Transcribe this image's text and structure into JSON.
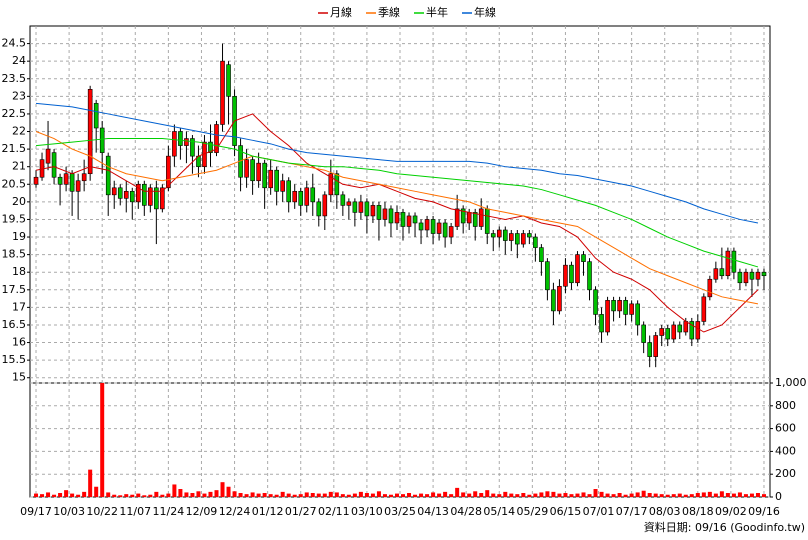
{
  "chart_data": {
    "type": "candlestick",
    "up_color": "#ff0000",
    "down_color": "#00c000",
    "outline_color": "#000000",
    "grid": true,
    "footer": "資料日期: 09/16 (Goodinfo.tw)",
    "xlim": [
      -1,
      122
    ],
    "xticks": [
      {
        "value": 0,
        "label": "09/17"
      },
      {
        "value": 5.5,
        "label": "10/03"
      },
      {
        "value": 11,
        "label": "10/22"
      },
      {
        "value": 16.5,
        "label": "11/07"
      },
      {
        "value": 22,
        "label": "11/24"
      },
      {
        "value": 27.5,
        "label": "12/09"
      },
      {
        "value": 33,
        "label": "12/24"
      },
      {
        "value": 38.5,
        "label": "01/12"
      },
      {
        "value": 44,
        "label": "01/27"
      },
      {
        "value": 49.5,
        "label": "02/11"
      },
      {
        "value": 55,
        "label": "03/10"
      },
      {
        "value": 60.5,
        "label": "03/25"
      },
      {
        "value": 66,
        "label": "04/13"
      },
      {
        "value": 71.5,
        "label": "04/28"
      },
      {
        "value": 77,
        "label": "05/14"
      },
      {
        "value": 82.5,
        "label": "05/29"
      },
      {
        "value": 88,
        "label": "06/15"
      },
      {
        "value": 93.5,
        "label": "07/01"
      },
      {
        "value": 99,
        "label": "07/17"
      },
      {
        "value": 104.5,
        "label": "08/03"
      },
      {
        "value": 110,
        "label": "08/18"
      },
      {
        "value": 115.5,
        "label": "09/02"
      },
      {
        "value": 121,
        "label": "09/16"
      }
    ],
    "ylim": [
      14.85,
      25
    ],
    "yticks": [
      15,
      15.5,
      16,
      16.5,
      17,
      17.5,
      18,
      18.5,
      19,
      19.5,
      20,
      20.5,
      21,
      21.5,
      22,
      22.5,
      23,
      23.5,
      24,
      24.5
    ],
    "ohlc": {
      "open": [
        20.5,
        20.7,
        21.1,
        21.4,
        20.7,
        20.5,
        20.8,
        20.3,
        20.6,
        20.8,
        22.8,
        22.1,
        21.3,
        20.2,
        20.4,
        20.1,
        20.3,
        20.0,
        20.5,
        19.9,
        20.4,
        19.8,
        20.4,
        21.3,
        22.0,
        21.6,
        21.8,
        21.3,
        21.0,
        21.7,
        21.4,
        22.2,
        23.9,
        23.0,
        21.6,
        20.7,
        21.2,
        20.6,
        21.1,
        20.4,
        20.9,
        20.3,
        20.6,
        20.0,
        20.3,
        19.9,
        20.4,
        20.0,
        19.6,
        20.2,
        20.8,
        20.2,
        19.9,
        20.0,
        19.7,
        20.0,
        19.6,
        19.9,
        19.5,
        19.8,
        19.4,
        19.7,
        19.3,
        19.6,
        19.4,
        19.2,
        19.5,
        19.1,
        19.4,
        19.0,
        19.3,
        19.8,
        19.4,
        19.7,
        19.3,
        19.8,
        19.1,
        19.0,
        19.2,
        18.9,
        19.1,
        18.8,
        19.1,
        19.0,
        18.7,
        18.3,
        17.5,
        16.9,
        17.6,
        18.2,
        17.7,
        18.5,
        18.3,
        17.5,
        16.8,
        16.3,
        17.2,
        16.9,
        17.2,
        16.8,
        17.1,
        16.5,
        16.0,
        15.6,
        16.2,
        16.4,
        16.1,
        16.5,
        16.3,
        16.6,
        16.1,
        16.6,
        17.3,
        17.8,
        18.1,
        17.9,
        18.6,
        18.0,
        17.7,
        18.0,
        17.8,
        18.0
      ],
      "high": [
        20.9,
        21.4,
        22.3,
        21.5,
        20.8,
        21.0,
        20.9,
        20.8,
        21.2,
        23.3,
        22.9,
        22.3,
        21.4,
        20.6,
        20.5,
        20.6,
        20.4,
        20.6,
        20.6,
        20.5,
        20.6,
        20.5,
        21.6,
        22.2,
        22.1,
        22.0,
        21.9,
        21.6,
        21.9,
        22.2,
        22.3,
        24.5,
        24.0,
        23.2,
        21.8,
        21.5,
        21.3,
        21.4,
        21.2,
        21.2,
        21.0,
        20.8,
        20.7,
        20.5,
        20.4,
        20.6,
        20.8,
        20.1,
        20.3,
        21.2,
        20.9,
        20.3,
        20.1,
        20.1,
        20.2,
        20.1,
        20.0,
        20.0,
        20.0,
        19.9,
        19.9,
        19.8,
        19.7,
        19.7,
        19.5,
        19.6,
        19.6,
        19.5,
        19.5,
        19.4,
        20.2,
        19.9,
        19.8,
        19.8,
        20.1,
        19.9,
        19.2,
        19.3,
        19.3,
        19.2,
        19.2,
        19.2,
        19.2,
        19.1,
        18.8,
        18.4,
        17.7,
        17.8,
        18.4,
        18.3,
        18.6,
        18.6,
        18.4,
        17.6,
        17.0,
        17.3,
        17.3,
        17.3,
        17.3,
        17.2,
        17.2,
        16.6,
        16.2,
        16.3,
        16.5,
        16.5,
        16.6,
        16.6,
        16.7,
        16.7,
        16.8,
        17.4,
        17.9,
        18.3,
        18.7,
        18.7,
        18.7,
        18.1,
        18.1,
        18.1,
        18.1,
        18.1
      ],
      "low": [
        20.4,
        20.6,
        20.9,
        20.5,
        19.9,
        20.3,
        19.6,
        19.5,
        20.3,
        20.6,
        21.4,
        20.8,
        19.6,
        19.8,
        19.9,
        19.7,
        19.5,
        19.8,
        19.6,
        19.7,
        18.8,
        19.7,
        20.3,
        21.0,
        21.2,
        21.1,
        20.8,
        20.7,
        20.8,
        21.0,
        21.3,
        22.0,
        22.2,
        21.3,
        20.3,
        20.4,
        20.2,
        20.4,
        19.8,
        20.2,
        19.9,
        20.0,
        19.7,
        19.8,
        19.6,
        19.7,
        19.6,
        19.3,
        19.2,
        20.0,
        19.8,
        19.6,
        19.5,
        19.3,
        19.5,
        19.1,
        19.4,
        18.9,
        19.3,
        19.0,
        19.2,
        18.9,
        19.1,
        19.0,
        18.8,
        19.0,
        18.8,
        18.9,
        18.7,
        18.8,
        19.2,
        19.1,
        19.2,
        18.9,
        19.2,
        18.8,
        18.6,
        18.7,
        18.5,
        18.6,
        18.4,
        18.7,
        18.8,
        18.3,
        17.9,
        17.2,
        16.5,
        16.8,
        17.4,
        17.5,
        17.6,
        17.9,
        17.2,
        16.5,
        16.0,
        16.2,
        16.6,
        16.7,
        16.5,
        16.6,
        16.2,
        15.7,
        15.3,
        15.3,
        15.9,
        15.9,
        16.0,
        16.1,
        16.2,
        15.9,
        16.0,
        16.5,
        17.2,
        17.7,
        17.8,
        17.8,
        17.8,
        17.5,
        17.6,
        17.3,
        17.6,
        17.5
      ],
      "close": [
        20.7,
        21.2,
        21.5,
        20.7,
        20.5,
        20.8,
        20.3,
        20.6,
        20.8,
        23.2,
        22.1,
        21.4,
        20.2,
        20.4,
        20.1,
        20.3,
        20.0,
        20.5,
        19.9,
        20.4,
        19.8,
        20.4,
        21.3,
        22.0,
        21.6,
        21.8,
        21.3,
        21.0,
        21.7,
        21.4,
        22.2,
        24.0,
        23.0,
        21.6,
        20.7,
        21.2,
        20.6,
        21.1,
        20.4,
        20.9,
        20.3,
        20.6,
        20.0,
        20.3,
        19.9,
        20.4,
        20.0,
        19.6,
        20.2,
        20.8,
        20.2,
        19.9,
        20.0,
        19.7,
        20.0,
        19.6,
        19.9,
        19.5,
        19.8,
        19.4,
        19.7,
        19.3,
        19.6,
        19.4,
        19.2,
        19.5,
        19.1,
        19.4,
        19.0,
        19.3,
        19.8,
        19.4,
        19.7,
        19.3,
        19.8,
        19.1,
        19.0,
        19.2,
        18.9,
        19.1,
        18.8,
        19.1,
        19.0,
        18.7,
        18.3,
        17.5,
        16.9,
        17.6,
        18.2,
        17.7,
        18.5,
        18.3,
        17.5,
        16.8,
        16.3,
        17.2,
        16.9,
        17.2,
        16.8,
        17.1,
        16.5,
        16.0,
        15.6,
        16.2,
        16.4,
        16.1,
        16.5,
        16.3,
        16.6,
        16.1,
        16.6,
        17.3,
        17.8,
        18.1,
        17.9,
        18.6,
        18.0,
        17.7,
        18.0,
        17.8,
        18.0,
        17.9
      ]
    },
    "ma_x": [
      0,
      3,
      6,
      9,
      12,
      15,
      18,
      21,
      24,
      27,
      30,
      33,
      36,
      39,
      42,
      45,
      48,
      51,
      54,
      57,
      60,
      63,
      66,
      69,
      72,
      75,
      78,
      81,
      84,
      87,
      90,
      93,
      96,
      99,
      102,
      105,
      108,
      111,
      114,
      117,
      120
    ],
    "series": [
      {
        "name": "月線",
        "color": "#d00000",
        "values": [
          20.9,
          21.0,
          20.8,
          21.0,
          20.9,
          20.6,
          20.3,
          20.3,
          20.8,
          21.3,
          21.5,
          22.3,
          22.5,
          22.0,
          21.6,
          21.1,
          20.8,
          20.5,
          20.4,
          20.5,
          20.3,
          20.1,
          20.0,
          19.8,
          19.7,
          19.6,
          19.5,
          19.6,
          19.4,
          19.3,
          19.0,
          18.4,
          18.0,
          17.8,
          17.5,
          17.0,
          16.6,
          16.3,
          16.5,
          17.0,
          17.5
        ]
      },
      {
        "name": "季線",
        "color": "#ff7000",
        "values": [
          22.0,
          21.8,
          21.5,
          21.3,
          21.0,
          20.8,
          20.7,
          20.6,
          20.7,
          20.8,
          20.9,
          21.1,
          21.3,
          21.2,
          21.1,
          21.0,
          20.9,
          20.7,
          20.6,
          20.5,
          20.4,
          20.3,
          20.2,
          20.1,
          20.0,
          19.8,
          19.7,
          19.6,
          19.5,
          19.4,
          19.3,
          19.0,
          18.7,
          18.4,
          18.1,
          17.9,
          17.7,
          17.5,
          17.3,
          17.2,
          17.1
        ]
      },
      {
        "name": "半年",
        "color": "#00d000",
        "values": [
          21.6,
          21.65,
          21.7,
          21.75,
          21.8,
          21.8,
          21.8,
          21.8,
          21.75,
          21.7,
          21.6,
          21.5,
          21.3,
          21.2,
          21.1,
          21.05,
          21.0,
          21.0,
          20.95,
          20.9,
          20.8,
          20.75,
          20.7,
          20.65,
          20.6,
          20.55,
          20.5,
          20.45,
          20.35,
          20.2,
          20.05,
          19.9,
          19.7,
          19.5,
          19.25,
          19.0,
          18.8,
          18.6,
          18.45,
          18.3,
          18.15
        ]
      },
      {
        "name": "年線",
        "color": "#0060d0",
        "values": [
          22.8,
          22.75,
          22.7,
          22.6,
          22.5,
          22.4,
          22.3,
          22.2,
          22.1,
          22.0,
          21.9,
          21.85,
          21.75,
          21.65,
          21.5,
          21.4,
          21.35,
          21.3,
          21.25,
          21.2,
          21.15,
          21.15,
          21.15,
          21.15,
          21.15,
          21.1,
          21.0,
          20.95,
          20.9,
          20.8,
          20.75,
          20.65,
          20.55,
          20.45,
          20.3,
          20.15,
          20.0,
          19.8,
          19.65,
          19.5,
          19.4
        ]
      }
    ],
    "volume": {
      "color": "#ff0000",
      "ylim": [
        0,
        1000
      ],
      "yticks": [
        0,
        200,
        400,
        600,
        800,
        {
          "value": 1000,
          "label": "1,000"
        }
      ],
      "values": [
        30,
        25,
        40,
        20,
        35,
        60,
        30,
        20,
        45,
        240,
        90,
        1000,
        40,
        20,
        15,
        25,
        20,
        30,
        15,
        20,
        45,
        20,
        30,
        110,
        70,
        40,
        35,
        50,
        30,
        45,
        60,
        130,
        90,
        50,
        35,
        25,
        40,
        30,
        35,
        25,
        20,
        45,
        30,
        20,
        25,
        40,
        35,
        30,
        30,
        45,
        40,
        25,
        20,
        30,
        45,
        35,
        30,
        50,
        25,
        20,
        30,
        25,
        35,
        20,
        30,
        25,
        40,
        30,
        45,
        25,
        80,
        40,
        30,
        50,
        35,
        60,
        30,
        25,
        45,
        30,
        25,
        35,
        20,
        30,
        40,
        50,
        45,
        30,
        35,
        25,
        30,
        40,
        25,
        70,
        45,
        30,
        25,
        35,
        20,
        30,
        40,
        55,
        35,
        30,
        25,
        20,
        25,
        30,
        20,
        25,
        35,
        40,
        45,
        30,
        50,
        35,
        30,
        40,
        25,
        30,
        35,
        25
      ]
    }
  }
}
